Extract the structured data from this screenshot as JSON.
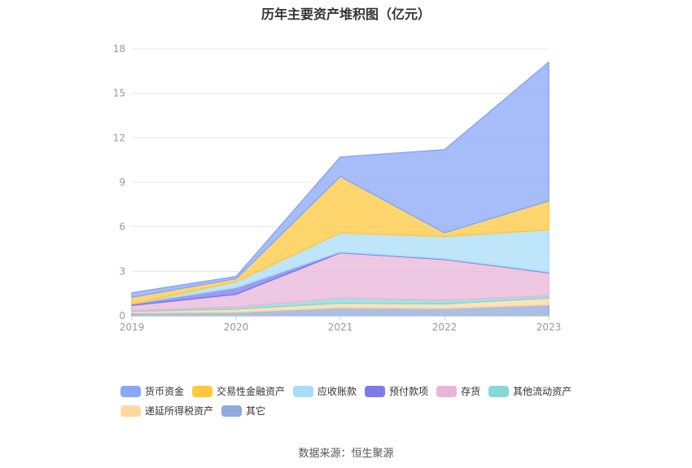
{
  "chart_data": {
    "type": "area",
    "stacked": true,
    "title": "历年主要资产堆积图（亿元）",
    "x": [
      "2019",
      "2020",
      "2021",
      "2022",
      "2023"
    ],
    "ylim": [
      0,
      18
    ],
    "yticks": [
      0,
      3,
      6,
      9,
      12,
      15,
      18
    ],
    "grid": true,
    "legend_position": "bottom",
    "series": [
      {
        "name": "其它",
        "color": "#8faadc",
        "values": [
          0.2,
          0.25,
          0.55,
          0.5,
          0.75
        ]
      },
      {
        "name": "递延所得税资产",
        "color": "#ffd8a0",
        "values": [
          0.1,
          0.2,
          0.3,
          0.3,
          0.45
        ]
      },
      {
        "name": "其他流动资产",
        "color": "#86d8d8",
        "values": [
          0.05,
          0.15,
          0.35,
          0.25,
          0.15
        ]
      },
      {
        "name": "存货",
        "color": "#e8b6d8",
        "values": [
          0.35,
          0.85,
          3.05,
          2.75,
          1.55
        ]
      },
      {
        "name": "预付款项",
        "color": "#7b7bea",
        "values": [
          0.1,
          0.45,
          0.05,
          0.05,
          0.05
        ]
      },
      {
        "name": "应收账款",
        "color": "#a8dcf8",
        "values": [
          0.0,
          0.4,
          1.3,
          1.5,
          2.85
        ]
      },
      {
        "name": "交易性金融资产",
        "color": "#ffc83c",
        "values": [
          0.45,
          0.2,
          3.8,
          0.25,
          1.95
        ]
      },
      {
        "name": "货币资金",
        "color": "#8aa7f8",
        "values": [
          0.3,
          0.15,
          1.3,
          5.6,
          9.35
        ]
      }
    ],
    "legend_order": [
      "货币资金",
      "交易性金融资产",
      "应收账款",
      "预付款项",
      "存货",
      "其他流动资产",
      "递延所得税资产",
      "其它"
    ]
  },
  "source": "数据来源：恒生聚源"
}
